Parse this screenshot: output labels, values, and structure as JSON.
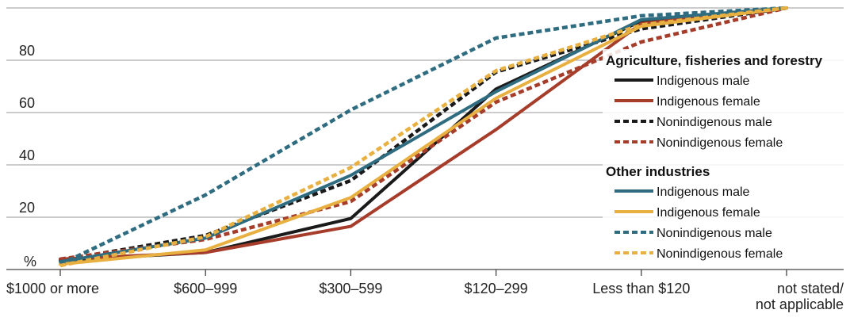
{
  "chart_data": {
    "type": "line",
    "categories": [
      "$1000 or more",
      "$600–999",
      "$300–599",
      "$120–299",
      "Less than $120",
      "not stated/\nnot applicable"
    ],
    "y_unit_label": "%",
    "y_ticks": [
      "20",
      "40",
      "60",
      "80"
    ],
    "ylim": [
      0,
      100
    ],
    "grid": "horizontal",
    "legend_position": "right",
    "groups": [
      {
        "title": "Agriculture, fisheries and forestry",
        "series": [
          {
            "name": "Indigenous male",
            "color": "#1a1a1a",
            "dashed": false,
            "values": [
              3.5,
              6.5,
              19.5,
              69,
              95,
              100
            ]
          },
          {
            "name": "Indigenous female",
            "color": "#a63d2a",
            "dashed": false,
            "values": [
              4,
              6.5,
              16.5,
              53.5,
              94,
              100
            ]
          },
          {
            "name": "Nonindigenous male",
            "color": "#1a1a1a",
            "dashed": true,
            "values": [
              3.5,
              13,
              34,
              75.5,
              92,
              100
            ]
          },
          {
            "name": "Nonindigenous female",
            "color": "#a63d2a",
            "dashed": true,
            "values": [
              4,
              11.5,
              26,
              64,
              87,
              100
            ]
          }
        ]
      },
      {
        "title": "Other industries",
        "series": [
          {
            "name": "Indigenous male",
            "color": "#2f6c80",
            "dashed": false,
            "values": [
              3,
              12,
              36,
              68,
              95.5,
              100
            ]
          },
          {
            "name": "Indigenous female",
            "color": "#e8b040",
            "dashed": false,
            "values": [
              2,
              7.5,
              27.5,
              65.5,
              93,
              100
            ]
          },
          {
            "name": "Nonindigenous male",
            "color": "#2f6c80",
            "dashed": true,
            "values": [
              2,
              28.5,
              61,
              88.5,
              97,
              100
            ]
          },
          {
            "name": "Nonindigenous female",
            "color": "#e8b040",
            "dashed": true,
            "values": [
              1.5,
              12.5,
              39,
              76,
              93.5,
              100
            ]
          }
        ]
      }
    ]
  }
}
